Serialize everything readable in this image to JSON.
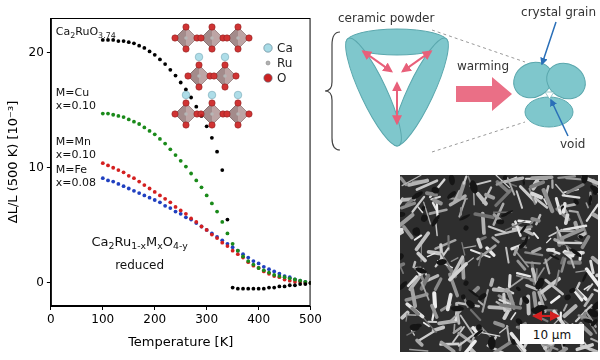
{
  "chart_data": {
    "type": "line",
    "x_label": "Temperature [K]",
    "y_label": "ΔL/L (500 K) [10⁻³]",
    "xlim": [
      0,
      500
    ],
    "xticks": [
      0,
      100,
      200,
      300,
      400,
      500
    ],
    "ylim": [
      -2,
      23
    ],
    "yticks": [
      0,
      10,
      20
    ],
    "grid": false,
    "marker": "circle",
    "line_style": "none",
    "annotations": [
      "Ca2Ru1-xMxO4-y",
      "reduced"
    ],
    "x": [
      100,
      110,
      120,
      130,
      140,
      150,
      160,
      170,
      180,
      190,
      200,
      210,
      220,
      230,
      240,
      250,
      260,
      270,
      280,
      290,
      300,
      310,
      320,
      330,
      340,
      350,
      360,
      370,
      380,
      390,
      400,
      410,
      420,
      430,
      440,
      450,
      460,
      470,
      480,
      490,
      500
    ],
    "series": [
      {
        "name": "Ca2RuO3.74",
        "color": "#000000",
        "values": [
          21.1,
          21.1,
          21.1,
          21.0,
          21.0,
          20.9,
          20.8,
          20.6,
          20.4,
          20.1,
          19.8,
          19.4,
          19.0,
          18.5,
          18.0,
          17.4,
          16.8,
          16.1,
          15.3,
          14.5,
          13.6,
          12.6,
          11.4,
          9.8,
          5.5,
          -0.4,
          -0.5,
          -0.5,
          -0.5,
          -0.5,
          -0.5,
          -0.5,
          -0.4,
          -0.4,
          -0.3,
          -0.3,
          -0.2,
          -0.2,
          -0.1,
          -0.1,
          0
        ]
      },
      {
        "name": "M=Cu x=0.10",
        "color": "#1a8a1a",
        "values": [
          14.7,
          14.7,
          14.6,
          14.5,
          14.4,
          14.2,
          14.0,
          13.8,
          13.5,
          13.2,
          12.9,
          12.5,
          12.1,
          11.6,
          11.1,
          10.6,
          10.1,
          9.5,
          8.9,
          8.3,
          7.6,
          6.9,
          6.2,
          5.3,
          4.3,
          3.4,
          2.8,
          2.3,
          1.9,
          1.6,
          1.3,
          1.1,
          0.9,
          0.7,
          0.6,
          0.5,
          0.4,
          0.3,
          0.2,
          0.1,
          0
        ]
      },
      {
        "name": "M=Mn x=0.10",
        "color": "#d42020",
        "values": [
          10.4,
          10.2,
          10.0,
          9.8,
          9.6,
          9.3,
          9.1,
          8.8,
          8.5,
          8.2,
          7.9,
          7.6,
          7.3,
          7.0,
          6.6,
          6.3,
          6.0,
          5.6,
          5.3,
          4.9,
          4.6,
          4.2,
          3.9,
          3.5,
          3.2,
          2.8,
          2.5,
          2.2,
          1.8,
          1.5,
          1.3,
          1.0,
          0.8,
          0.6,
          0.5,
          0.3,
          0.2,
          0.1,
          0.1,
          0,
          0
        ]
      },
      {
        "name": "M=Fe x=0.08",
        "color": "#2040c0",
        "values": [
          9.1,
          8.9,
          8.8,
          8.6,
          8.4,
          8.2,
          8.0,
          7.8,
          7.6,
          7.4,
          7.2,
          7.0,
          6.7,
          6.5,
          6.2,
          6.0,
          5.7,
          5.5,
          5.2,
          4.9,
          4.6,
          4.3,
          4.0,
          3.7,
          3.4,
          3.1,
          2.8,
          2.5,
          2.2,
          1.9,
          1.7,
          1.4,
          1.2,
          1.0,
          0.8,
          0.6,
          0.5,
          0.3,
          0.2,
          0.1,
          0
        ]
      }
    ]
  },
  "inset": {
    "atoms": [
      {
        "label": "Ca",
        "color": "#a8dbe6"
      },
      {
        "label": "Ru",
        "color": "#b0b0b0"
      },
      {
        "label": "O",
        "color": "#cc2222"
      }
    ]
  },
  "diagram": {
    "powder": "ceramic powder",
    "process": "warming",
    "grain": "crystal grain",
    "void": "void"
  },
  "micrograph": {
    "scale_bar": "10 μm"
  }
}
